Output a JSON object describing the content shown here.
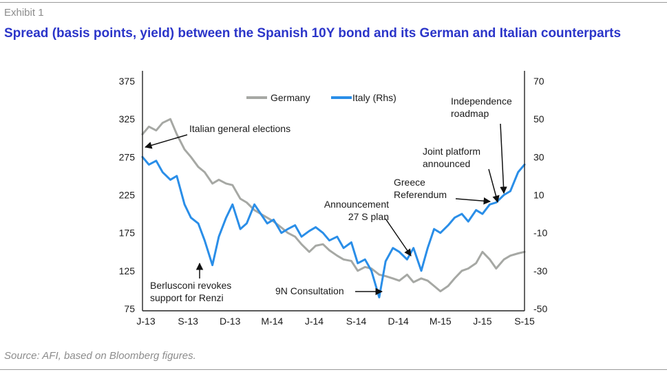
{
  "header": {
    "exhibit": "Exhibit 1",
    "title": "Spread (basis points, yield) between the Spanish 10Y bond and its German and Italian counterparts"
  },
  "footer": {
    "source": "Source: AFI, based on Bloomberg figures."
  },
  "colors": {
    "germany": "#a6a8a4",
    "italy": "#2a8ee8",
    "title": "#2b35c9",
    "text": "#1a1a1a"
  },
  "chart_data": {
    "type": "line",
    "title": "",
    "xlabel": "",
    "ylabel": "",
    "grid": false,
    "legend_position": "top",
    "x_ticks": [
      "J-13",
      "S-13",
      "D-13",
      "M-14",
      "J-14",
      "S-14",
      "D-14",
      "M-15",
      "J-15",
      "S-15"
    ],
    "y_left": {
      "min": 75,
      "max": 375,
      "ticks": [
        75,
        125,
        175,
        225,
        275,
        325,
        375
      ]
    },
    "y_right": {
      "min": -50,
      "max": 70,
      "ticks": [
        -50,
        -30,
        -10,
        10,
        30,
        50,
        70
      ]
    },
    "series": [
      {
        "name": "Germany",
        "axis": "left",
        "x": [
          "2013-06-01",
          "2013-06-15",
          "2013-07-01",
          "2013-07-15",
          "2013-08-01",
          "2013-08-15",
          "2013-09-01",
          "2013-09-15",
          "2013-10-01",
          "2013-10-15",
          "2013-11-01",
          "2013-11-15",
          "2013-12-01",
          "2013-12-15",
          "2014-01-01",
          "2014-01-15",
          "2014-02-01",
          "2014-02-15",
          "2014-03-01",
          "2014-03-15",
          "2014-04-01",
          "2014-04-15",
          "2014-05-01",
          "2014-05-15",
          "2014-06-01",
          "2014-06-15",
          "2014-07-01",
          "2014-07-15",
          "2014-08-01",
          "2014-08-15",
          "2014-09-01",
          "2014-09-15",
          "2014-10-01",
          "2014-10-15",
          "2014-11-01",
          "2014-11-15",
          "2014-12-01",
          "2014-12-15",
          "2015-01-01",
          "2015-01-15",
          "2015-02-01",
          "2015-02-15",
          "2015-03-01",
          "2015-03-15",
          "2015-04-01",
          "2015-04-15",
          "2015-05-01",
          "2015-05-15",
          "2015-06-01",
          "2015-06-15",
          "2015-07-01",
          "2015-07-15",
          "2015-08-01",
          "2015-08-15",
          "2015-09-01",
          "2015-09-15"
        ],
        "values": [
          305,
          315,
          310,
          320,
          325,
          305,
          285,
          275,
          262,
          255,
          240,
          245,
          240,
          238,
          220,
          215,
          205,
          200,
          195,
          190,
          182,
          175,
          170,
          160,
          150,
          158,
          160,
          152,
          145,
          140,
          138,
          125,
          130,
          128,
          120,
          118,
          115,
          112,
          120,
          110,
          115,
          112,
          105,
          98,
          105,
          115,
          125,
          128,
          135,
          150,
          140,
          128,
          140,
          145,
          148,
          150
        ]
      },
      {
        "name": "Italy (Rhs)",
        "axis": "right",
        "x": [
          "2013-06-01",
          "2013-06-15",
          "2013-07-01",
          "2013-07-15",
          "2013-08-01",
          "2013-08-15",
          "2013-09-01",
          "2013-09-15",
          "2013-10-01",
          "2013-10-15",
          "2013-11-01",
          "2013-11-15",
          "2013-12-01",
          "2013-12-15",
          "2014-01-01",
          "2014-01-15",
          "2014-02-01",
          "2014-02-15",
          "2014-03-01",
          "2014-03-15",
          "2014-04-01",
          "2014-04-15",
          "2014-05-01",
          "2014-05-15",
          "2014-06-01",
          "2014-06-15",
          "2014-07-01",
          "2014-07-15",
          "2014-08-01",
          "2014-08-15",
          "2014-09-01",
          "2014-09-15",
          "2014-10-01",
          "2014-10-15",
          "2014-11-01",
          "2014-11-15",
          "2014-12-01",
          "2014-12-15",
          "2015-01-01",
          "2015-01-15",
          "2015-02-01",
          "2015-02-15",
          "2015-03-01",
          "2015-03-15",
          "2015-04-01",
          "2015-04-15",
          "2015-05-01",
          "2015-05-15",
          "2015-06-01",
          "2015-06-15",
          "2015-07-01",
          "2015-07-15",
          "2015-08-01",
          "2015-08-15",
          "2015-09-01",
          "2015-09-15"
        ],
        "values": [
          30,
          26,
          28,
          22,
          18,
          20,
          5,
          -2,
          -5,
          -14,
          -27,
          -12,
          -2,
          5,
          -8,
          -5,
          5,
          0,
          -5,
          -3,
          -10,
          -8,
          -6,
          -12,
          -9,
          -7,
          -10,
          -14,
          -12,
          -18,
          -15,
          -26,
          -24,
          -30,
          -44,
          -25,
          -18,
          -20,
          -24,
          -18,
          -30,
          -18,
          -8,
          -10,
          -6,
          -2,
          0,
          -4,
          2,
          0,
          5,
          6,
          10,
          12,
          22,
          26
        ]
      }
    ],
    "annotations": [
      {
        "text": "Italian general elections",
        "target": [
          "2013-06-01",
          285
        ]
      },
      {
        "text": "Berlusconi revokes support for Renzi",
        "target": [
          "2013-10-01",
          130
        ]
      },
      {
        "text": "9N Consultation",
        "target": [
          "2014-11-01",
          98
        ]
      },
      {
        "text": "Announcement 27 S plan",
        "target": [
          "2014-12-15",
          128
        ]
      },
      {
        "text": "Greece Referendum",
        "target": [
          "2015-06-20",
          215
        ]
      },
      {
        "text": "Joint platform announced",
        "target": [
          "2015-08-05",
          207
        ]
      },
      {
        "text": "Independence roadmap",
        "target": [
          "2015-08-25",
          225
        ]
      }
    ]
  }
}
